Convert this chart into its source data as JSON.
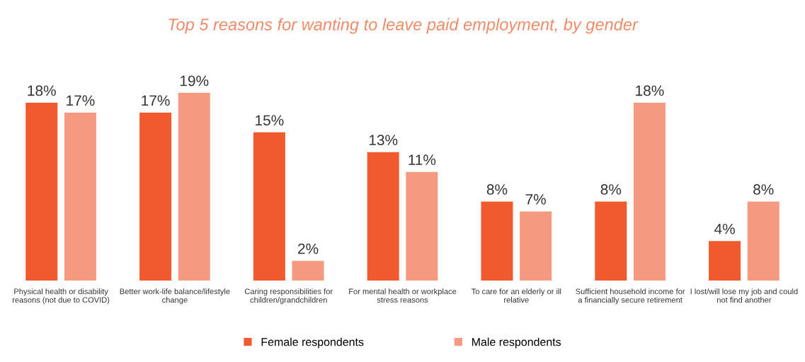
{
  "chart_data": {
    "type": "bar",
    "title": "Top 5 reasons for wanting to leave paid employment, by gender",
    "categories": [
      "Physical health or disability\nreasons (not due to COVID)",
      "Better work-life balance/lifestyle\nchange",
      "Caring responsibilities for\nchildren/grandchildren",
      "For mental health or workplace\nstress reasons",
      "To care for an elderly or ill\nrelative",
      "Sufficient household income for\na financially secure retirement",
      "I lost/will lose my job and could\nnot find another"
    ],
    "series": [
      {
        "name": "Female respondents",
        "color": "#f15a2f",
        "values": [
          18,
          17,
          15,
          13,
          8,
          8,
          4
        ],
        "value_labels": [
          "18%",
          "17%",
          "15%",
          "13%",
          "8%",
          "8%",
          "4%"
        ]
      },
      {
        "name": "Male respondents",
        "color": "#f59a80",
        "values": [
          17,
          19,
          2,
          11,
          7,
          18,
          8
        ],
        "value_labels": [
          "17%",
          "19%",
          "2%",
          "11%",
          "7%",
          "18%",
          "8%"
        ]
      }
    ],
    "grid": false,
    "legend": "bottom"
  }
}
